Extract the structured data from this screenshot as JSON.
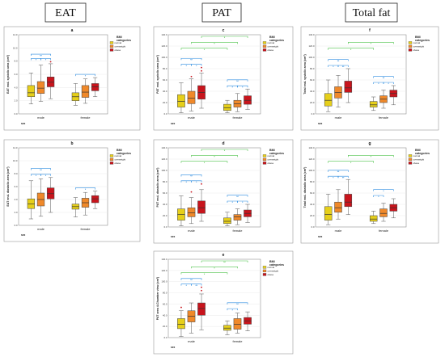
{
  "headers": [
    {
      "key": "eat",
      "label": "EAT"
    },
    {
      "key": "pat",
      "label": "PAT"
    },
    {
      "key": "total",
      "label": "Total fat"
    }
  ],
  "colors": {
    "normal": "#e6cf1a",
    "overweight": "#f0892a",
    "obese": "#c8141c",
    "bracket_main": "#2a8be0",
    "bracket_cross": "#4ec24a",
    "outlier": "#c8141c"
  },
  "legend": {
    "title": "BMI categories",
    "items": [
      "normal",
      "overweight",
      "obese"
    ]
  },
  "xlabel": "sex",
  "chart_data": [
    {
      "id": "a",
      "type": "boxplot",
      "ylabel": "EAT end- systolic area (cm²)",
      "ylim": [
        0,
        12
      ],
      "yticks": [
        0,
        2,
        4,
        6,
        8,
        10,
        12
      ],
      "groups": [
        "male",
        "female"
      ],
      "series": [
        "normal",
        "overweight",
        "obese"
      ],
      "boxes": [
        [
          [
            1.5,
            2.6,
            3.2,
            4.3,
            6.2
          ],
          [
            1.9,
            3.1,
            3.9,
            4.9,
            7.4
          ],
          [
            2.3,
            4.1,
            4.8,
            5.6,
            7.6
          ]
        ],
        [
          [
            1.3,
            2.0,
            2.6,
            3.2,
            4.6
          ],
          [
            1.6,
            2.5,
            3.3,
            4.3,
            5.3
          ],
          [
            2.6,
            3.5,
            4.1,
            4.6,
            5.5
          ]
        ]
      ],
      "outliers": [
        [
          [],
          [],
          [
            7.9
          ]
        ],
        [
          [],
          [],
          []
        ]
      ],
      "sig": [
        {
          "g": [
            0,
            0
          ],
          "b": [
            0,
            2
          ],
          "label": "**",
          "c": "main",
          "lvl": 2
        },
        {
          "g": [
            0,
            0
          ],
          "b": [
            0,
            1
          ],
          "label": "*",
          "c": "main",
          "lvl": 1
        },
        {
          "g": [
            0,
            0
          ],
          "b": [
            1,
            2
          ],
          "label": "*",
          "c": "main",
          "lvl": 1
        },
        {
          "g": [
            1,
            1
          ],
          "b": [
            0,
            2
          ],
          "label": "*",
          "c": "main",
          "lvl": 1
        }
      ]
    },
    {
      "id": "b",
      "type": "boxplot",
      "ylabel": "EAT end- diastolic area (cm²)",
      "ylim": [
        0,
        12
      ],
      "yticks": [
        0,
        2,
        4,
        6,
        8,
        10,
        12
      ],
      "groups": [
        "male",
        "female"
      ],
      "series": [
        "normal",
        "overweight",
        "obese"
      ],
      "boxes": [
        [
          [
            1.0,
            2.6,
            3.3,
            4.1,
            6.9
          ],
          [
            1.4,
            3.0,
            4.0,
            5.0,
            7.2
          ],
          [
            2.0,
            4.1,
            4.9,
            5.8,
            7.4
          ]
        ],
        [
          [
            1.3,
            2.5,
            2.9,
            3.3,
            4.3
          ],
          [
            1.6,
            2.8,
            3.5,
            4.2,
            5.1
          ],
          [
            2.6,
            3.5,
            4.1,
            4.6,
            5.3
          ]
        ]
      ],
      "outliers": [
        [
          [],
          [],
          []
        ],
        [
          [],
          [],
          []
        ]
      ],
      "sig": [
        {
          "g": [
            0,
            0
          ],
          "b": [
            0,
            2
          ],
          "label": "**",
          "c": "main",
          "lvl": 2
        },
        {
          "g": [
            0,
            0
          ],
          "b": [
            0,
            1
          ],
          "label": "*",
          "c": "main",
          "lvl": 1
        },
        {
          "g": [
            0,
            0
          ],
          "b": [
            1,
            2
          ],
          "label": "*",
          "c": "main",
          "lvl": 1
        },
        {
          "g": [
            1,
            1
          ],
          "b": [
            0,
            2
          ],
          "label": "*",
          "c": "main",
          "lvl": 1
        }
      ]
    },
    {
      "id": "c",
      "type": "boxplot",
      "ylabel": "PAT end- systolic area (cm²)",
      "ylim": [
        0,
        140
      ],
      "yticks": [
        0,
        20,
        40,
        60,
        80,
        100,
        120,
        140
      ],
      "groups": [
        "male",
        "female"
      ],
      "series": [
        "normal",
        "overweight",
        "obese"
      ],
      "boxes": [
        [
          [
            2,
            12,
            22,
            34,
            55
          ],
          [
            5,
            18,
            28,
            40,
            62
          ],
          [
            10,
            26,
            38,
            50,
            72
          ]
        ],
        [
          [
            2,
            6,
            11,
            17,
            24
          ],
          [
            4,
            12,
            18,
            24,
            36
          ],
          [
            8,
            17,
            24,
            32,
            44
          ]
        ]
      ],
      "outliers": [
        [
          [],
          [
            66
          ],
          [
            76,
            82
          ]
        ],
        [
          [],
          [],
          []
        ]
      ],
      "sig": [
        {
          "g": [
            0,
            0
          ],
          "b": [
            0,
            2
          ],
          "label": "**",
          "c": "main",
          "lvl": 2
        },
        {
          "g": [
            0,
            0
          ],
          "b": [
            0,
            1
          ],
          "label": "*",
          "c": "main",
          "lvl": 1
        },
        {
          "g": [
            0,
            0
          ],
          "b": [
            1,
            2
          ],
          "label": "*",
          "c": "main",
          "lvl": 1
        },
        {
          "g": [
            1,
            1
          ],
          "b": [
            0,
            2
          ],
          "label": "**",
          "c": "main",
          "lvl": 2
        },
        {
          "g": [
            1,
            1
          ],
          "b": [
            0,
            1
          ],
          "label": "*",
          "c": "main",
          "lvl": 1
        },
        {
          "g": [
            1,
            1
          ],
          "b": [
            1,
            2
          ],
          "label": "*",
          "c": "main",
          "lvl": 1
        },
        {
          "g": [
            0,
            1
          ],
          "b": [
            0,
            0
          ],
          "label": "*",
          "c": "cross",
          "lvl": 3
        },
        {
          "g": [
            0,
            1
          ],
          "b": [
            1,
            1
          ],
          "label": "*",
          "c": "cross",
          "lvl": 4
        },
        {
          "g": [
            0,
            1
          ],
          "b": [
            2,
            2
          ],
          "label": "*",
          "c": "cross",
          "lvl": 5
        }
      ]
    },
    {
      "id": "d",
      "type": "boxplot",
      "ylabel": "PAT end- diastolic area (cm²)",
      "ylim": [
        0,
        140
      ],
      "yticks": [
        0,
        20,
        40,
        60,
        80,
        100,
        120,
        140
      ],
      "groups": [
        "male",
        "female"
      ],
      "series": [
        "normal",
        "overweight",
        "obese"
      ],
      "boxes": [
        [
          [
            2,
            12,
            22,
            32,
            55
          ],
          [
            6,
            18,
            25,
            34,
            52
          ],
          [
            10,
            24,
            34,
            46,
            66
          ]
        ],
        [
          [
            2,
            6,
            10,
            16,
            26
          ],
          [
            4,
            12,
            18,
            22,
            32
          ],
          [
            8,
            18,
            24,
            30,
            40
          ]
        ]
      ],
      "outliers": [
        [
          [],
          [
            62
          ],
          [
            76
          ]
        ],
        [
          [],
          [],
          []
        ]
      ],
      "sig": [
        {
          "g": [
            0,
            0
          ],
          "b": [
            0,
            2
          ],
          "label": "**",
          "c": "main",
          "lvl": 2
        },
        {
          "g": [
            0,
            0
          ],
          "b": [
            0,
            1
          ],
          "label": "*",
          "c": "main",
          "lvl": 1
        },
        {
          "g": [
            0,
            0
          ],
          "b": [
            1,
            2
          ],
          "label": "*",
          "c": "main",
          "lvl": 1
        },
        {
          "g": [
            1,
            1
          ],
          "b": [
            0,
            2
          ],
          "label": "**",
          "c": "main",
          "lvl": 2
        },
        {
          "g": [
            1,
            1
          ],
          "b": [
            0,
            1
          ],
          "label": "*",
          "c": "main",
          "lvl": 1
        },
        {
          "g": [
            1,
            1
          ],
          "b": [
            1,
            2
          ],
          "label": "*",
          "c": "main",
          "lvl": 1
        },
        {
          "g": [
            0,
            1
          ],
          "b": [
            0,
            0
          ],
          "label": "*",
          "c": "cross",
          "lvl": 3
        },
        {
          "g": [
            0,
            1
          ],
          "b": [
            1,
            1
          ],
          "label": "*",
          "c": "cross",
          "lvl": 4
        },
        {
          "g": [
            0,
            1
          ],
          "b": [
            2,
            2
          ],
          "label": "*",
          "c": "cross",
          "lvl": 5
        }
      ]
    },
    {
      "id": "e",
      "type": "boxplot",
      "ylabel": "PAT area 4-Chamber view (cm²)",
      "ylim": [
        0,
        140
      ],
      "yticks": [
        0,
        20,
        40,
        60,
        80,
        100,
        120,
        140
      ],
      "groups": [
        "male",
        "female"
      ],
      "series": [
        "normal",
        "overweight",
        "obese"
      ],
      "boxes": [
        [
          [
            2,
            16,
            24,
            34,
            48
          ],
          [
            8,
            28,
            38,
            48,
            62
          ],
          [
            14,
            40,
            52,
            62,
            78
          ]
        ],
        [
          [
            5,
            13,
            17,
            22,
            30
          ],
          [
            8,
            15,
            24,
            34,
            44
          ],
          [
            12,
            24,
            30,
            36,
            46
          ]
        ]
      ],
      "outliers": [
        [
          [
            54
          ],
          [],
          [
            84,
            90
          ]
        ],
        [
          [],
          [],
          []
        ]
      ],
      "sig": [
        {
          "g": [
            0,
            0
          ],
          "b": [
            0,
            2
          ],
          "label": "**",
          "c": "main",
          "lvl": 2
        },
        {
          "g": [
            0,
            0
          ],
          "b": [
            0,
            1
          ],
          "label": "*",
          "c": "main",
          "lvl": 1
        },
        {
          "g": [
            0,
            0
          ],
          "b": [
            1,
            2
          ],
          "label": "**",
          "c": "main",
          "lvl": 1
        },
        {
          "g": [
            1,
            1
          ],
          "b": [
            0,
            2
          ],
          "label": "**",
          "c": "main",
          "lvl": 2
        },
        {
          "g": [
            1,
            1
          ],
          "b": [
            0,
            1
          ],
          "label": "*",
          "c": "main",
          "lvl": 1
        },
        {
          "g": [
            0,
            1
          ],
          "b": [
            0,
            0
          ],
          "label": "*",
          "c": "cross",
          "lvl": 3
        },
        {
          "g": [
            0,
            1
          ],
          "b": [
            1,
            1
          ],
          "label": "*",
          "c": "cross",
          "lvl": 4
        },
        {
          "g": [
            0,
            1
          ],
          "b": [
            2,
            2
          ],
          "label": "**",
          "c": "cross",
          "lvl": 5
        }
      ]
    },
    {
      "id": "f",
      "type": "boxplot",
      "ylabel": "Total end- systolic area (cm²)",
      "ylim": [
        0,
        140
      ],
      "yticks": [
        0,
        20,
        40,
        60,
        80,
        100,
        120,
        140
      ],
      "groups": [
        "male",
        "female"
      ],
      "series": [
        "normal",
        "overweight",
        "obese"
      ],
      "boxes": [
        [
          [
            4,
            14,
            24,
            36,
            60
          ],
          [
            12,
            28,
            38,
            48,
            68
          ],
          [
            20,
            38,
            46,
            58,
            80
          ]
        ],
        [
          [
            6,
            12,
            16,
            22,
            30
          ],
          [
            10,
            20,
            26,
            32,
            42
          ],
          [
            16,
            30,
            36,
            42,
            50
          ]
        ]
      ],
      "outliers": [
        [
          [],
          [],
          []
        ],
        [
          [],
          [],
          []
        ]
      ],
      "sig": [
        {
          "g": [
            0,
            0
          ],
          "b": [
            0,
            2
          ],
          "label": "**",
          "c": "main",
          "lvl": 2
        },
        {
          "g": [
            0,
            0
          ],
          "b": [
            0,
            1
          ],
          "label": "*",
          "c": "main",
          "lvl": 1
        },
        {
          "g": [
            0,
            0
          ],
          "b": [
            1,
            2
          ],
          "label": "**",
          "c": "main",
          "lvl": 1
        },
        {
          "g": [
            1,
            1
          ],
          "b": [
            0,
            2
          ],
          "label": "**",
          "c": "main",
          "lvl": 2
        },
        {
          "g": [
            1,
            1
          ],
          "b": [
            0,
            1
          ],
          "label": "*",
          "c": "main",
          "lvl": 1
        },
        {
          "g": [
            1,
            1
          ],
          "b": [
            1,
            2
          ],
          "label": "*",
          "c": "main",
          "lvl": 1
        },
        {
          "g": [
            0,
            1
          ],
          "b": [
            0,
            0
          ],
          "label": "*",
          "c": "cross",
          "lvl": 3
        },
        {
          "g": [
            0,
            1
          ],
          "b": [
            2,
            2
          ],
          "label": "*",
          "c": "cross",
          "lvl": 4
        }
      ]
    },
    {
      "id": "g",
      "type": "boxplot",
      "ylabel": "Total end- diastolic area (cm²)",
      "ylim": [
        0,
        140
      ],
      "yticks": [
        0,
        20,
        40,
        60,
        80,
        100,
        120,
        140
      ],
      "groups": [
        "male",
        "female"
      ],
      "series": [
        "normal",
        "overweight",
        "obese"
      ],
      "boxes": [
        [
          [
            4,
            12,
            22,
            36,
            58
          ],
          [
            14,
            26,
            34,
            44,
            66
          ],
          [
            22,
            36,
            44,
            58,
            84
          ]
        ],
        [
          [
            6,
            10,
            14,
            20,
            28
          ],
          [
            10,
            18,
            24,
            32,
            42
          ],
          [
            16,
            28,
            34,
            40,
            50
          ]
        ]
      ],
      "outliers": [
        [
          [],
          [],
          []
        ],
        [
          [],
          [],
          []
        ]
      ],
      "sig": [
        {
          "g": [
            0,
            0
          ],
          "b": [
            0,
            2
          ],
          "label": "**",
          "c": "main",
          "lvl": 2
        },
        {
          "g": [
            0,
            0
          ],
          "b": [
            0,
            1
          ],
          "label": "*",
          "c": "main",
          "lvl": 1
        },
        {
          "g": [
            0,
            0
          ],
          "b": [
            1,
            2
          ],
          "label": "**",
          "c": "main",
          "lvl": 1
        },
        {
          "g": [
            1,
            1
          ],
          "b": [
            0,
            2
          ],
          "label": "*",
          "c": "main",
          "lvl": 2
        },
        {
          "g": [
            1,
            1
          ],
          "b": [
            0,
            1
          ],
          "label": "*",
          "c": "main",
          "lvl": 1
        },
        {
          "g": [
            0,
            1
          ],
          "b": [
            0,
            0
          ],
          "label": "*",
          "c": "cross",
          "lvl": 3
        },
        {
          "g": [
            0,
            1
          ],
          "b": [
            2,
            2
          ],
          "label": "*",
          "c": "cross",
          "lvl": 4
        }
      ]
    }
  ]
}
